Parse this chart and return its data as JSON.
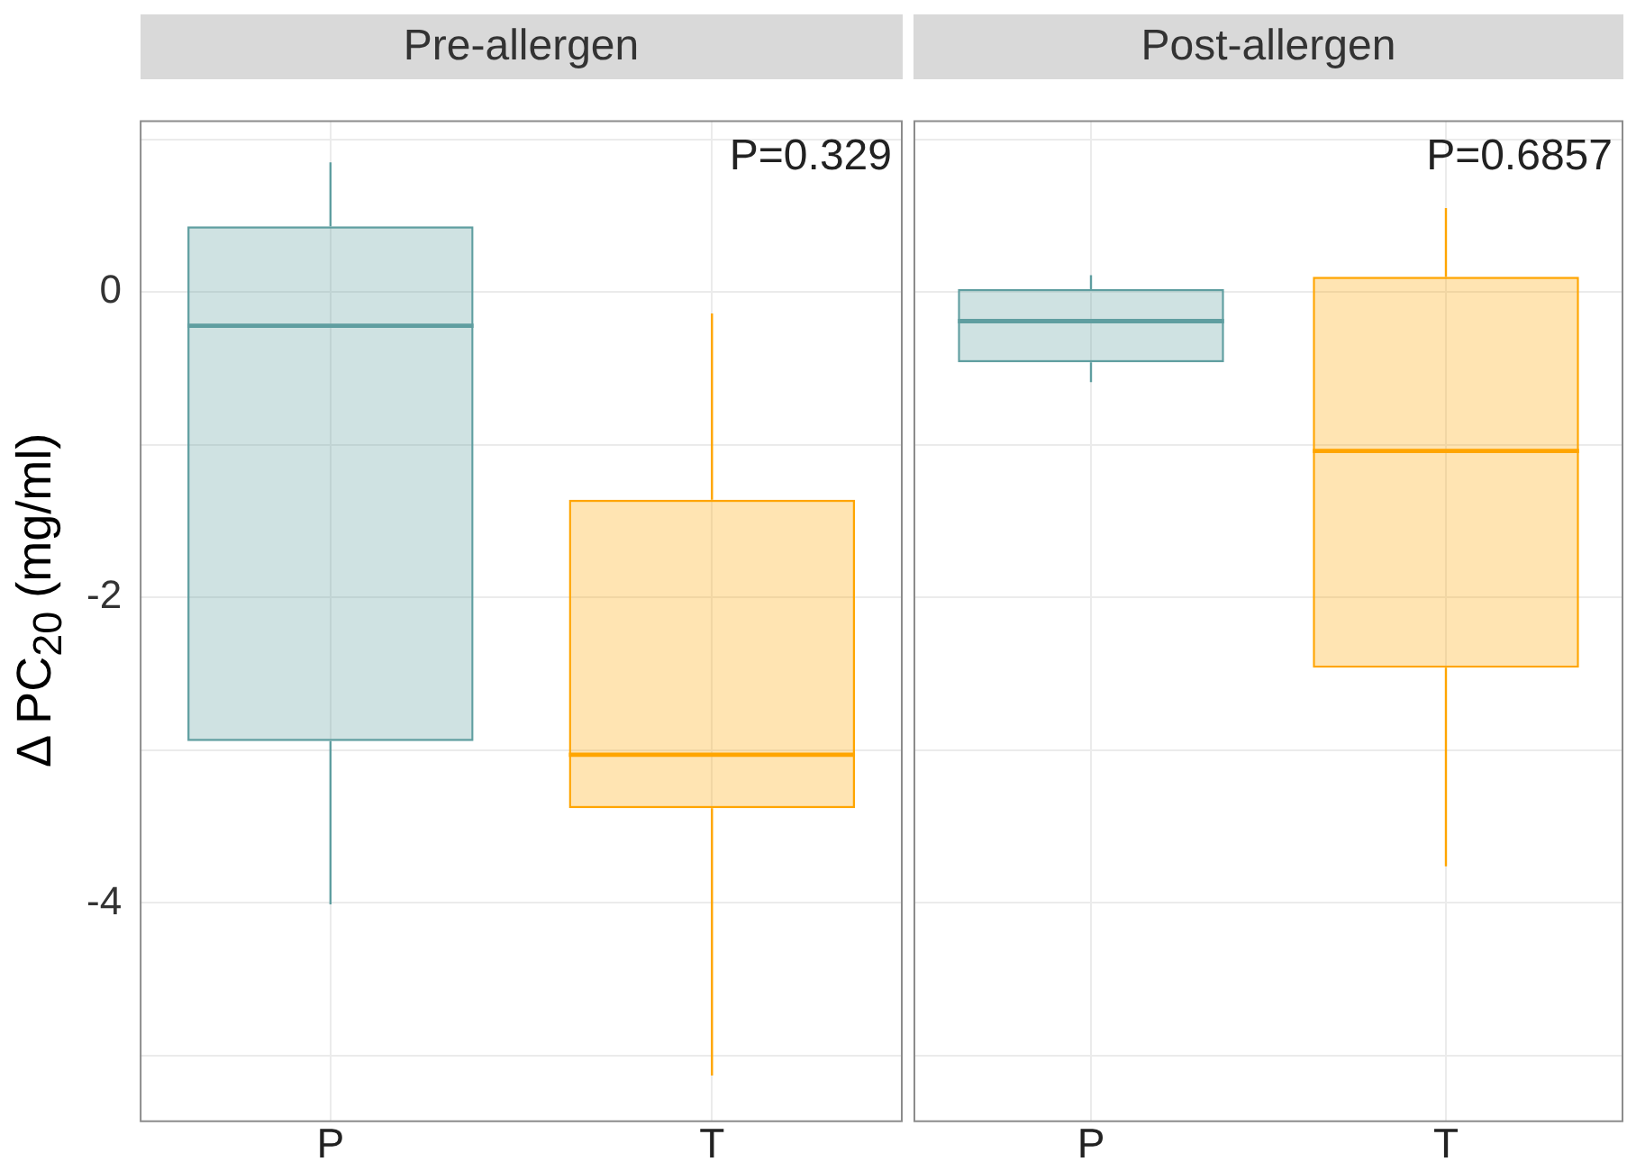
{
  "chart_data": [
    {
      "type": "box",
      "title": "Pre-allergen",
      "ylabel": "Δ PC$_{20}$ (mg/ml)",
      "categories": [
        "P",
        "T"
      ],
      "colors": [
        "#5f9ea0",
        "#ffa500"
      ],
      "boxes": [
        {
          "low": -4.01,
          "q1": -2.94,
          "median": -0.22,
          "q3": 0.43,
          "high": 0.85
        },
        {
          "low": -5.13,
          "q1": -3.38,
          "median": -3.03,
          "q3": -1.36,
          "high": -0.14
        }
      ],
      "ylim": [
        -5.43,
        1.12
      ],
      "yticks": [
        {
          "value": -5,
          "label": null
        },
        -4,
        {
          "value": -3,
          "label": null
        },
        -2,
        {
          "value": -1,
          "label": null
        },
        0,
        {
          "value": 1,
          "label": null
        }
      ],
      "grid": true,
      "annotations": [
        "P=0.329"
      ]
    },
    {
      "type": "box",
      "title": "Post-allergen",
      "categories": [
        "P",
        "T"
      ],
      "colors": [
        "#5f9ea0",
        "#ffa500"
      ],
      "boxes": [
        {
          "low": -0.59,
          "q1": -0.46,
          "median": -0.19,
          "q3": 0.02,
          "high": 0.11
        },
        {
          "low": -3.76,
          "q1": -2.46,
          "median": -1.04,
          "q3": 0.1,
          "high": 0.55
        }
      ],
      "ylim": [
        -5.43,
        1.12
      ],
      "yticks": [
        {
          "value": -5,
          "label": null
        },
        -4,
        {
          "value": -3,
          "label": null
        },
        -2,
        {
          "value": -1,
          "label": null
        },
        0,
        {
          "value": 1,
          "label": null
        }
      ],
      "grid": true,
      "tick_labels": "x",
      "annotations": [
        "P=0.6857"
      ]
    }
  ]
}
